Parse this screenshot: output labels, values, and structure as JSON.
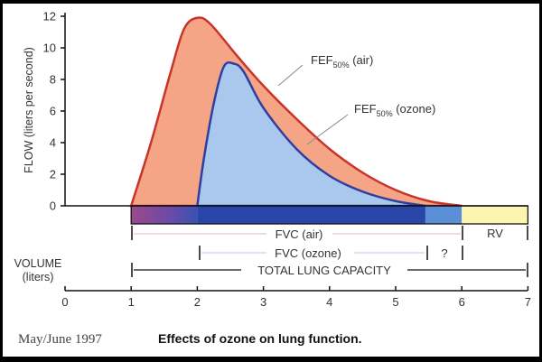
{
  "chart_data": {
    "type": "area",
    "title": "Effects of ozone on lung function.",
    "source": "May/June 1997",
    "xlabel": "VOLUME (liters)",
    "ylabel": "FLOW (liters per second)",
    "xlim": [
      0,
      7
    ],
    "ylim": [
      0,
      12
    ],
    "x_ticks": [
      "0",
      "1",
      "2",
      "3",
      "4",
      "5",
      "6",
      "7"
    ],
    "y_ticks": [
      "0",
      "2",
      "4",
      "6",
      "8",
      "10",
      "12"
    ],
    "grid": false,
    "series": [
      {
        "name": "FEF50% (air)",
        "color": "#c8342a",
        "fill": "#f5a585",
        "points": [
          [
            1,
            0
          ],
          [
            1.3,
            4
          ],
          [
            1.6,
            8.5
          ],
          [
            1.8,
            11.2
          ],
          [
            2.0,
            11.9
          ],
          [
            2.2,
            11.5
          ],
          [
            2.6,
            9.5
          ],
          [
            3.0,
            7.6
          ],
          [
            3.5,
            5.5
          ],
          [
            4.0,
            3.6
          ],
          [
            4.5,
            2.1
          ],
          [
            5.0,
            1.0
          ],
          [
            5.5,
            0.3
          ],
          [
            6.0,
            0
          ]
        ]
      },
      {
        "name": "FEF50% (ozone)",
        "color": "#2e3fa0",
        "fill": "#aac8ee",
        "points": [
          [
            2.0,
            0
          ],
          [
            2.1,
            3
          ],
          [
            2.25,
            6.5
          ],
          [
            2.4,
            8.8
          ],
          [
            2.55,
            9.0
          ],
          [
            2.7,
            8.5
          ],
          [
            3.0,
            6.2
          ],
          [
            3.5,
            3.6
          ],
          [
            4.0,
            1.9
          ],
          [
            4.5,
            0.9
          ],
          [
            5.0,
            0.3
          ],
          [
            5.45,
            0
          ]
        ]
      }
    ],
    "volume_bar": [
      {
        "label": "purple segment",
        "from": 1,
        "to": 2,
        "color": "#8a4a9a"
      },
      {
        "label": "dark blue segment",
        "from": 2,
        "to": 5.45,
        "color": "#2a45a8"
      },
      {
        "label": "light blue segment",
        "from": 5.45,
        "to": 6,
        "color": "#5a8fd8"
      },
      {
        "label": "RV",
        "from": 6,
        "to": 7,
        "color": "#fbf5b0"
      }
    ],
    "annotations": {
      "fef_air": {
        "main": "FEF",
        "sub": "50%",
        "rest": " (air)"
      },
      "fef_ozone": {
        "main": "FEF",
        "sub": "50%",
        "rest": " (ozone)"
      },
      "fvc_air": {
        "label": "FVC (air)",
        "from": 1,
        "to": 6
      },
      "fvc_ozone": {
        "label": "FVC (ozone)",
        "from": 2,
        "to": 5.45
      },
      "unknown": {
        "label": "?",
        "from": 5.45,
        "to": 6
      },
      "rv": {
        "label": "RV",
        "from": 6,
        "to": 7
      },
      "tlc": {
        "label": "TOTAL LUNG CAPACITY",
        "from": 1,
        "to": 7
      }
    }
  },
  "axis": {
    "ylabel": "FLOW (liters per second)",
    "xlabel_line1": "VOLUME",
    "xlabel_line2": "(liters)"
  },
  "footer": {
    "source": "May/June 1997",
    "caption": "Effects of ozone on lung function."
  }
}
